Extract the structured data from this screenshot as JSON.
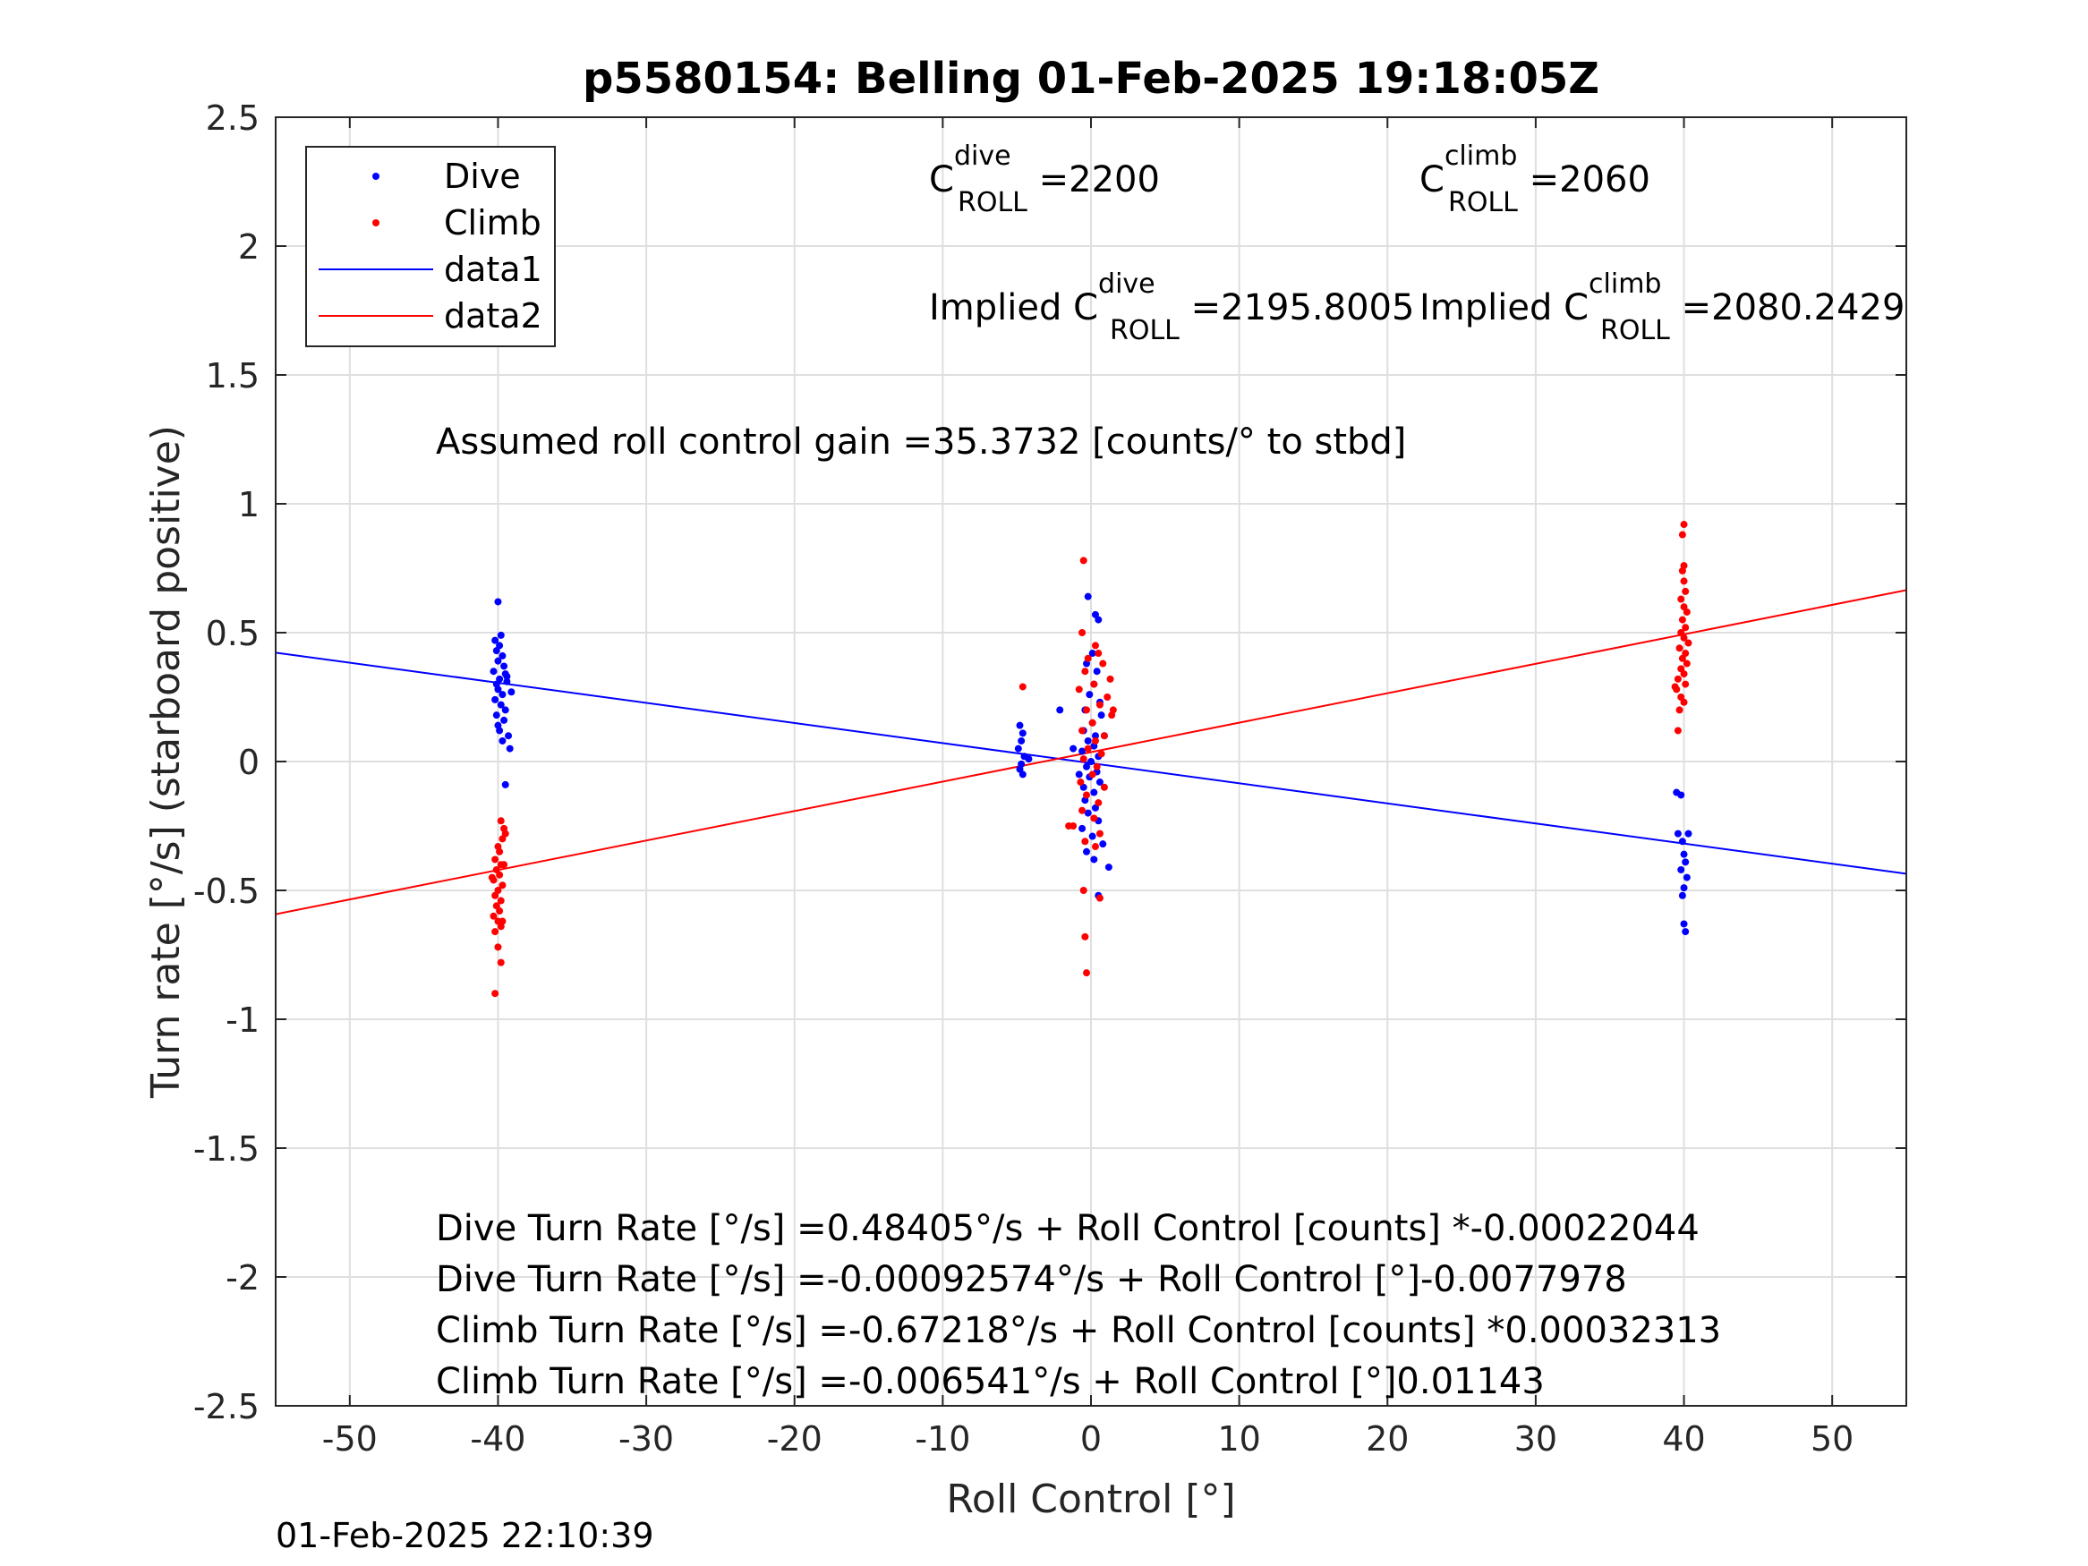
{
  "chart_data": {
    "type": "scatter",
    "title": "p5580154: Belling 01-Feb-2025 19:18:05Z",
    "xlabel": "Roll Control [°]",
    "ylabel": "Turn rate [°/s] (starboard positive)",
    "xlim": [
      -55,
      55
    ],
    "ylim": [
      -2.5,
      2.5
    ],
    "x_ticks": [
      -50,
      -40,
      -30,
      -20,
      -10,
      0,
      10,
      20,
      30,
      40,
      50
    ],
    "y_ticks": [
      2.5,
      2,
      1.5,
      1,
      0.5,
      0,
      -0.5,
      -1,
      -1.5,
      -2,
      -2.5
    ],
    "x_tick_labels": [
      "-50",
      "-40",
      "-30",
      "-20",
      "-10",
      "0",
      "10",
      "20",
      "30",
      "40",
      "50"
    ],
    "y_tick_labels": [
      "2.5",
      "2",
      "1.5",
      "1",
      "0.5",
      "0",
      "-0.5",
      "-1",
      "-1.5",
      "-2",
      "-2.5"
    ],
    "grid": true,
    "legend_position": "top-left",
    "series": [
      {
        "name": "Dive",
        "kind": "points",
        "color": "#0000ff",
        "points": [
          [
            -40,
            0.62
          ],
          [
            -39.8,
            0.49
          ],
          [
            -40.2,
            0.47
          ],
          [
            -39.9,
            0.45
          ],
          [
            -40.1,
            0.43
          ],
          [
            -39.7,
            0.41
          ],
          [
            -40,
            0.39
          ],
          [
            -39.6,
            0.37
          ],
          [
            -40.3,
            0.35
          ],
          [
            -39.5,
            0.34
          ],
          [
            -39.9,
            0.32
          ],
          [
            -40.1,
            0.3
          ],
          [
            -39.4,
            0.31
          ],
          [
            -40,
            0.28
          ],
          [
            -39.7,
            0.26
          ],
          [
            -40.2,
            0.24
          ],
          [
            -39.8,
            0.22
          ],
          [
            -39.5,
            0.2
          ],
          [
            -40.1,
            0.18
          ],
          [
            -39.6,
            0.16
          ],
          [
            -40,
            0.14
          ],
          [
            -39.9,
            0.12
          ],
          [
            -39.3,
            0.1
          ],
          [
            -39.7,
            0.08
          ],
          [
            -39.2,
            0.05
          ],
          [
            -39.4,
            0.33
          ],
          [
            -39.1,
            0.27
          ],
          [
            -39.5,
            -0.09
          ],
          [
            -4.8,
            0.14
          ],
          [
            -4.6,
            0.11
          ],
          [
            -4.7,
            0.08
          ],
          [
            -4.9,
            0.05
          ],
          [
            -4.5,
            0.02
          ],
          [
            -4.7,
            -0.01
          ],
          [
            -4.8,
            -0.03
          ],
          [
            -4.6,
            -0.05
          ],
          [
            -4.2,
            0.01
          ],
          [
            -0.2,
            0.64
          ],
          [
            0.3,
            0.57
          ],
          [
            0.5,
            0.55
          ],
          [
            0.1,
            0.42
          ],
          [
            -0.3,
            0.38
          ],
          [
            0.4,
            0.35
          ],
          [
            0.2,
            0.3
          ],
          [
            -0.1,
            0.26
          ],
          [
            0.6,
            0.23
          ],
          [
            -0.4,
            0.2
          ],
          [
            0.7,
            0.18
          ],
          [
            0.1,
            0.15
          ],
          [
            -0.5,
            0.12
          ],
          [
            0.3,
            0.1
          ],
          [
            -0.2,
            0.08
          ],
          [
            0.2,
            0.06
          ],
          [
            -0.6,
            0.04
          ],
          [
            0.5,
            0.02
          ],
          [
            0,
            0
          ],
          [
            -0.3,
            -0.02
          ],
          [
            0.4,
            -0.04
          ],
          [
            -0.1,
            -0.06
          ],
          [
            0.6,
            -0.08
          ],
          [
            -0.5,
            -0.1
          ],
          [
            0.2,
            -0.12
          ],
          [
            -0.4,
            -0.15
          ],
          [
            0.3,
            -0.18
          ],
          [
            -0.2,
            -0.2
          ],
          [
            0.5,
            -0.23
          ],
          [
            -0.6,
            -0.26
          ],
          [
            0.1,
            -0.29
          ],
          [
            0.8,
            -0.32
          ],
          [
            -0.3,
            -0.35
          ],
          [
            0.2,
            -0.38
          ],
          [
            1.2,
            -0.41
          ],
          [
            0.5,
            -0.52
          ],
          [
            -2.1,
            0.2
          ],
          [
            -1.2,
            0.05
          ],
          [
            -0.8,
            -0.05
          ],
          [
            0.9,
            0.1
          ],
          [
            39.5,
            -0.12
          ],
          [
            39.8,
            -0.13
          ],
          [
            39.6,
            -0.28
          ],
          [
            40.3,
            -0.28
          ],
          [
            39.9,
            -0.31
          ],
          [
            40,
            -0.36
          ],
          [
            40.1,
            -0.39
          ],
          [
            39.8,
            -0.42
          ],
          [
            40.2,
            -0.45
          ],
          [
            40,
            -0.49
          ],
          [
            39.9,
            -0.52
          ],
          [
            40,
            -0.63
          ],
          [
            40.1,
            -0.66
          ]
        ]
      },
      {
        "name": "Climb",
        "kind": "points",
        "color": "#ff0000",
        "points": [
          [
            -39.8,
            -0.23
          ],
          [
            -39.6,
            -0.26
          ],
          [
            -39.5,
            -0.28
          ],
          [
            -39.7,
            -0.3
          ],
          [
            -40,
            -0.33
          ],
          [
            -39.9,
            -0.35
          ],
          [
            -40.2,
            -0.38
          ],
          [
            -39.8,
            -0.4
          ],
          [
            -40.1,
            -0.42
          ],
          [
            -39.9,
            -0.44
          ],
          [
            -40.3,
            -0.46
          ],
          [
            -39.7,
            -0.48
          ],
          [
            -40,
            -0.5
          ],
          [
            -40.2,
            -0.52
          ],
          [
            -39.8,
            -0.54
          ],
          [
            -40.1,
            -0.56
          ],
          [
            -39.9,
            -0.58
          ],
          [
            -40.3,
            -0.6
          ],
          [
            -40,
            -0.62
          ],
          [
            -39.8,
            -0.64
          ],
          [
            -40.2,
            -0.66
          ],
          [
            -39.7,
            -0.62
          ],
          [
            -40,
            -0.72
          ],
          [
            -39.8,
            -0.78
          ],
          [
            -40.2,
            -0.9
          ],
          [
            -39.6,
            -0.4
          ],
          [
            -40.4,
            -0.45
          ],
          [
            -4.6,
            0.29
          ],
          [
            -0.5,
            0.78
          ],
          [
            -0.6,
            0.5
          ],
          [
            0.3,
            0.45
          ],
          [
            0.5,
            0.42
          ],
          [
            -0.2,
            0.4
          ],
          [
            0.8,
            0.38
          ],
          [
            -0.4,
            0.35
          ],
          [
            1.3,
            0.32
          ],
          [
            0.2,
            0.3
          ],
          [
            -0.8,
            0.28
          ],
          [
            1.1,
            0.25
          ],
          [
            0.6,
            0.22
          ],
          [
            -0.3,
            0.2
          ],
          [
            1.4,
            0.18
          ],
          [
            0.1,
            0.15
          ],
          [
            -0.6,
            0.12
          ],
          [
            0.9,
            0.1
          ],
          [
            0.3,
            0.08
          ],
          [
            -0.2,
            0.05
          ],
          [
            0.7,
            0.03
          ],
          [
            -0.5,
            0.01
          ],
          [
            0.4,
            -0.02
          ],
          [
            0.1,
            -0.05
          ],
          [
            -0.7,
            -0.08
          ],
          [
            0.9,
            -0.1
          ],
          [
            -0.3,
            -0.13
          ],
          [
            0.5,
            -0.16
          ],
          [
            -0.6,
            -0.19
          ],
          [
            0.2,
            -0.22
          ],
          [
            -1.2,
            -0.25
          ],
          [
            0.6,
            -0.28
          ],
          [
            -0.4,
            -0.31
          ],
          [
            0.3,
            -0.33
          ],
          [
            -0.5,
            -0.5
          ],
          [
            0.6,
            -0.53
          ],
          [
            -0.4,
            -0.68
          ],
          [
            -0.3,
            -0.82
          ],
          [
            -1.5,
            -0.25
          ],
          [
            1.5,
            0.2
          ],
          [
            40,
            0.92
          ],
          [
            39.9,
            0.88
          ],
          [
            40,
            0.76
          ],
          [
            39.9,
            0.74
          ],
          [
            40,
            0.7
          ],
          [
            40.1,
            0.66
          ],
          [
            39.8,
            0.63
          ],
          [
            40,
            0.6
          ],
          [
            40.2,
            0.58
          ],
          [
            39.9,
            0.55
          ],
          [
            40.1,
            0.52
          ],
          [
            39.8,
            0.5
          ],
          [
            40,
            0.48
          ],
          [
            40.3,
            0.46
          ],
          [
            39.7,
            0.44
          ],
          [
            40.1,
            0.42
          ],
          [
            39.9,
            0.4
          ],
          [
            40.2,
            0.38
          ],
          [
            39.8,
            0.36
          ],
          [
            40,
            0.34
          ],
          [
            39.6,
            0.32
          ],
          [
            40.1,
            0.3
          ],
          [
            39.5,
            0.28
          ],
          [
            39.8,
            0.25
          ],
          [
            40,
            0.23
          ],
          [
            39.7,
            0.2
          ],
          [
            39.6,
            0.12
          ],
          [
            39.4,
            0.29
          ]
        ]
      },
      {
        "name": "data1",
        "kind": "line",
        "color": "#0000ff",
        "x": [
          -55,
          55
        ],
        "y": [
          0.4225,
          -0.4354
        ]
      },
      {
        "name": "data2",
        "kind": "line",
        "color": "#ff0000",
        "x": [
          -55,
          55
        ],
        "y": [
          -0.5923,
          0.665
        ]
      }
    ],
    "annotations": {
      "c_dive_base": "C",
      "c_dive_sup": "dive",
      "c_dive_sub": "ROLL",
      "c_dive_value": " =2200",
      "c_climb_base": "C",
      "c_climb_sup": "climb",
      "c_climb_sub": "ROLL",
      "c_climb_value": " =2060",
      "implied_dive_prefix": "Implied C",
      "implied_dive_sup": "dive",
      "implied_dive_sub": "ROLL",
      "implied_dive_value": " =2195.8005",
      "implied_climb_prefix": "Implied C",
      "implied_climb_sup": "climb",
      "implied_climb_sub": "ROLL",
      "implied_climb_value": " =2080.2429",
      "gain": "Assumed roll control gain =35.3732 [counts/° to stbd]",
      "eq1": "Dive Turn Rate [°/s] =0.48405°/s + Roll Control [counts] *-0.00022044",
      "eq2": "Dive Turn Rate [°/s] =-0.00092574°/s + Roll Control [°]-0.0077978",
      "eq3": "Climb Turn Rate [°/s] =-0.67218°/s + Roll Control [counts] *0.00032313",
      "eq4": "Climb Turn Rate [°/s] =-0.006541°/s + Roll Control [°]0.01143"
    },
    "timestamp": "01-Feb-2025 22:10:39"
  }
}
